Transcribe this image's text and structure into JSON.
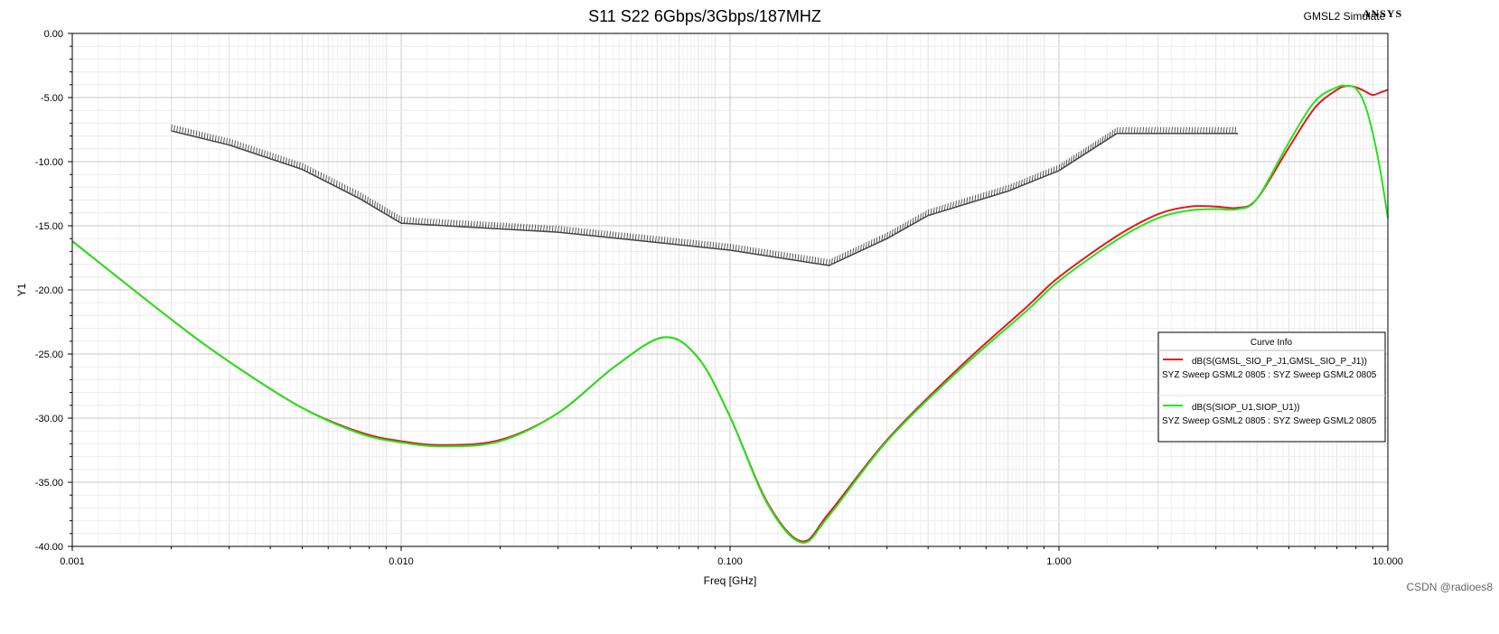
{
  "header": {
    "brand_text": "GMSL2 Simulate",
    "brand_logo": "ANSYS"
  },
  "watermark": "CSDN @radioes8",
  "chart_data": {
    "type": "line",
    "title": "S11 S22 6Gbps/3Gbps/187MHZ",
    "xlabel": "Freq [GHz]",
    "ylabel": "Y1",
    "xscale": "log",
    "xlim": [
      0.001,
      10.0
    ],
    "ylim": [
      -40.0,
      0.0
    ],
    "xticks": [
      0.001,
      0.01,
      0.1,
      1.0,
      10.0
    ],
    "xtick_labels": [
      "0.001",
      "0.010",
      "0.100",
      "1.000",
      "10.000"
    ],
    "yticks": [
      0,
      -5,
      -10,
      -15,
      -20,
      -25,
      -30,
      -35,
      -40
    ],
    "ytick_labels": [
      "0.00",
      "-5.00",
      "-10.00",
      "-15.00",
      "-20.00",
      "-25.00",
      "-30.00",
      "-35.00",
      "-40.00"
    ],
    "grid": true,
    "legend": {
      "title": "Curve Info",
      "placement": "right"
    },
    "series": [
      {
        "name": "dB(S(GMSL_SIO_P_J1,GMSL_SIO_P_J1))",
        "subtitle": "SYZ Sweep GSML2 0805 : SYZ Sweep GSML2 0805",
        "color": "#e8141c",
        "x": [
          0.001,
          0.002,
          0.003,
          0.005,
          0.0075,
          0.01,
          0.0135,
          0.02,
          0.03,
          0.045,
          0.063,
          0.08,
          0.1,
          0.13,
          0.165,
          0.2,
          0.3,
          0.5,
          0.8,
          1.0,
          1.5,
          2.0,
          2.5,
          3.0,
          3.5,
          4.0,
          5.0,
          6.0,
          7.0,
          7.5,
          8.0,
          8.5,
          9.0,
          9.5,
          10.0
        ],
        "y": [
          -16.2,
          -22.3,
          -25.6,
          -29.2,
          -31.1,
          -31.8,
          -32.1,
          -31.7,
          -29.6,
          -25.9,
          -23.7,
          -25.3,
          -29.9,
          -36.6,
          -39.6,
          -37.4,
          -31.7,
          -26.0,
          -21.3,
          -19.0,
          -15.8,
          -14.1,
          -13.5,
          -13.5,
          -13.6,
          -12.9,
          -8.9,
          -5.8,
          -4.4,
          -4.1,
          -4.2,
          -4.5,
          -4.8,
          -4.6,
          -4.4
        ]
      },
      {
        "name": "dB(S(SIOP_U1,SIOP_U1))",
        "subtitle": "SYZ Sweep GSML2 0805 : SYZ Sweep GSML2 0805",
        "color": "#22e61c",
        "x": [
          0.001,
          0.002,
          0.003,
          0.005,
          0.0075,
          0.01,
          0.0135,
          0.02,
          0.03,
          0.045,
          0.063,
          0.08,
          0.1,
          0.13,
          0.165,
          0.2,
          0.3,
          0.5,
          0.8,
          1.0,
          1.5,
          2.0,
          2.5,
          3.0,
          3.5,
          4.0,
          5.0,
          6.0,
          7.0,
          7.5,
          8.0,
          8.5,
          9.0,
          9.5,
          10.0
        ],
        "y": [
          -16.2,
          -22.3,
          -25.6,
          -29.2,
          -31.2,
          -31.9,
          -32.2,
          -31.8,
          -29.6,
          -25.9,
          -23.7,
          -25.3,
          -29.9,
          -36.7,
          -39.7,
          -37.6,
          -31.8,
          -26.2,
          -21.6,
          -19.3,
          -16.1,
          -14.4,
          -13.8,
          -13.7,
          -13.7,
          -12.9,
          -8.5,
          -5.3,
          -4.2,
          -4.1,
          -4.3,
          -5.5,
          -7.8,
          -10.8,
          -14.4
        ]
      },
      {
        "name": "",
        "role": "spec-mask",
        "color": "#444444",
        "x": [
          0.002,
          0.003,
          0.005,
          0.0075,
          0.01,
          0.03,
          0.1,
          0.2,
          0.3,
          0.4,
          0.7,
          1.0,
          1.5,
          3.5
        ],
        "y": [
          -7.6,
          -8.7,
          -10.6,
          -12.9,
          -14.8,
          -15.5,
          -16.9,
          -18.1,
          -16.0,
          -14.2,
          -12.3,
          -10.7,
          -7.8,
          -7.8
        ]
      }
    ]
  }
}
